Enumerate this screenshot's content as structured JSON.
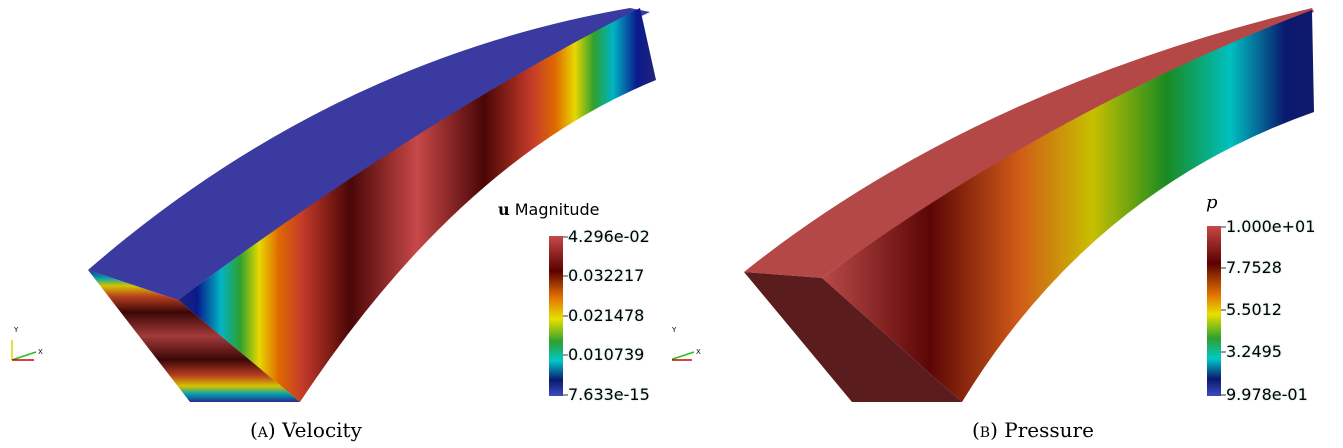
{
  "panel_a": {
    "caption_tag": "(a)",
    "caption_text": "Velocity",
    "legend": {
      "title_symbol": "u",
      "title_rest": "Magnitude",
      "ticks": [
        "4.296e-02",
        "0.032217",
        "0.021478",
        "0.010739",
        "7.633e-15"
      ]
    }
  },
  "panel_b": {
    "caption_tag": "(b)",
    "caption_text": "Pressure",
    "legend": {
      "title": "p",
      "ticks": [
        "1.000e+01",
        "7.7528",
        "5.5012",
        "3.2495",
        "9.978e-01"
      ]
    }
  },
  "axes_triad": {
    "y_label": "Y",
    "x_label": "X"
  },
  "colormap": [
    "#3b4cc0",
    "#0a1a6e",
    "#00c8c8",
    "#2fa02f",
    "#e8e000",
    "#e07000",
    "#5a0000",
    "#c84848"
  ]
}
